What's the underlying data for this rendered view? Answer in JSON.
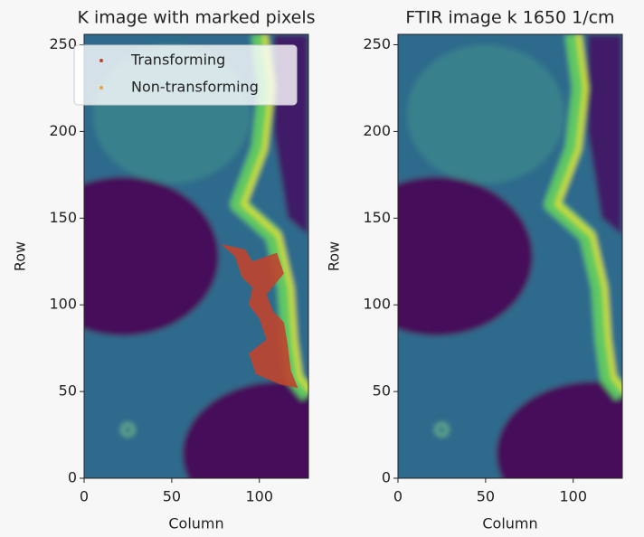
{
  "chart_data": [
    {
      "type": "image",
      "title": "K image with marked pixels",
      "xlabel": "Column",
      "ylabel": "Row",
      "xlim": [
        0,
        128
      ],
      "ylim": [
        0,
        256
      ],
      "xticks": [
        0,
        50,
        100
      ],
      "yticks": [
        0,
        50,
        100,
        150,
        200,
        250
      ],
      "legend": "upper left",
      "series": [
        {
          "name": "Transforming",
          "color": "#c0442c"
        },
        {
          "name": "Non-transforming",
          "color": "#e8a33a"
        }
      ]
    },
    {
      "type": "image",
      "title": "FTIR image k 1650 1/cm",
      "xlabel": "Column",
      "ylabel": "Row",
      "xlim": [
        0,
        128
      ],
      "ylim": [
        0,
        256
      ],
      "xticks": [
        0,
        50,
        100
      ],
      "yticks": [
        0,
        50,
        100,
        150,
        200,
        250
      ]
    }
  ]
}
